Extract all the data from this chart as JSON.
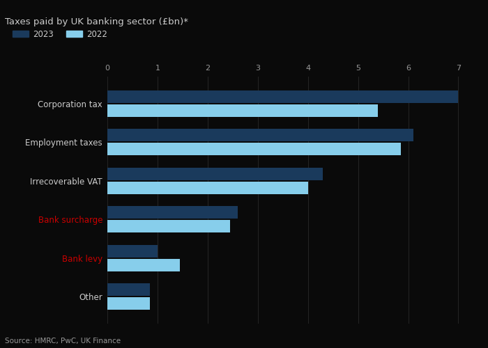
{
  "title": "Taxes paid by UK banking sector (£bn)*",
  "categories": [
    "Corporation tax",
    "Employment taxes",
    "Irrecoverable VAT",
    "Bank surcharge",
    "Bank levy",
    "Other"
  ],
  "values_2023": [
    7.0,
    6.1,
    4.3,
    2.6,
    1.0,
    0.85
  ],
  "values_2022": [
    5.4,
    5.85,
    4.0,
    2.45,
    1.45,
    0.85
  ],
  "color_2023": "#1a3a5c",
  "color_2022": "#87ceeb",
  "xlim": [
    0,
    7.3
  ],
  "xticks": [
    0,
    1,
    2,
    3,
    4,
    5,
    6,
    7
  ],
  "legend_2023": "2023",
  "legend_2022": "2022",
  "source": "Source: HMRC, PwC, UK Finance",
  "bar_height": 0.32,
  "bg_color": "#0a0a0a",
  "text_color": "#cccccc",
  "grid_color": "#2a2a2a",
  "tick_label_color": "#999999",
  "label_color_red": "#cc0000",
  "title_color": "#cccccc",
  "red_categories": [
    "Bank surcharge",
    "Bank levy"
  ]
}
